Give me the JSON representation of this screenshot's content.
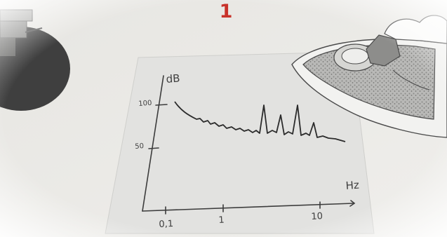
{
  "step_number": "1",
  "sketch_graph": {
    "y_axis_unit": "dB",
    "y_tick_labels": [
      "100",
      "50"
    ],
    "x_axis_unit": "Hz",
    "x_tick_labels": [
      "0,1",
      "1",
      "10"
    ]
  },
  "colors": {
    "step_number": "#c8322a",
    "sheet": "#e3e3e1",
    "background_paper": "#ecebe8",
    "ink": "#3a3a3a"
  }
}
